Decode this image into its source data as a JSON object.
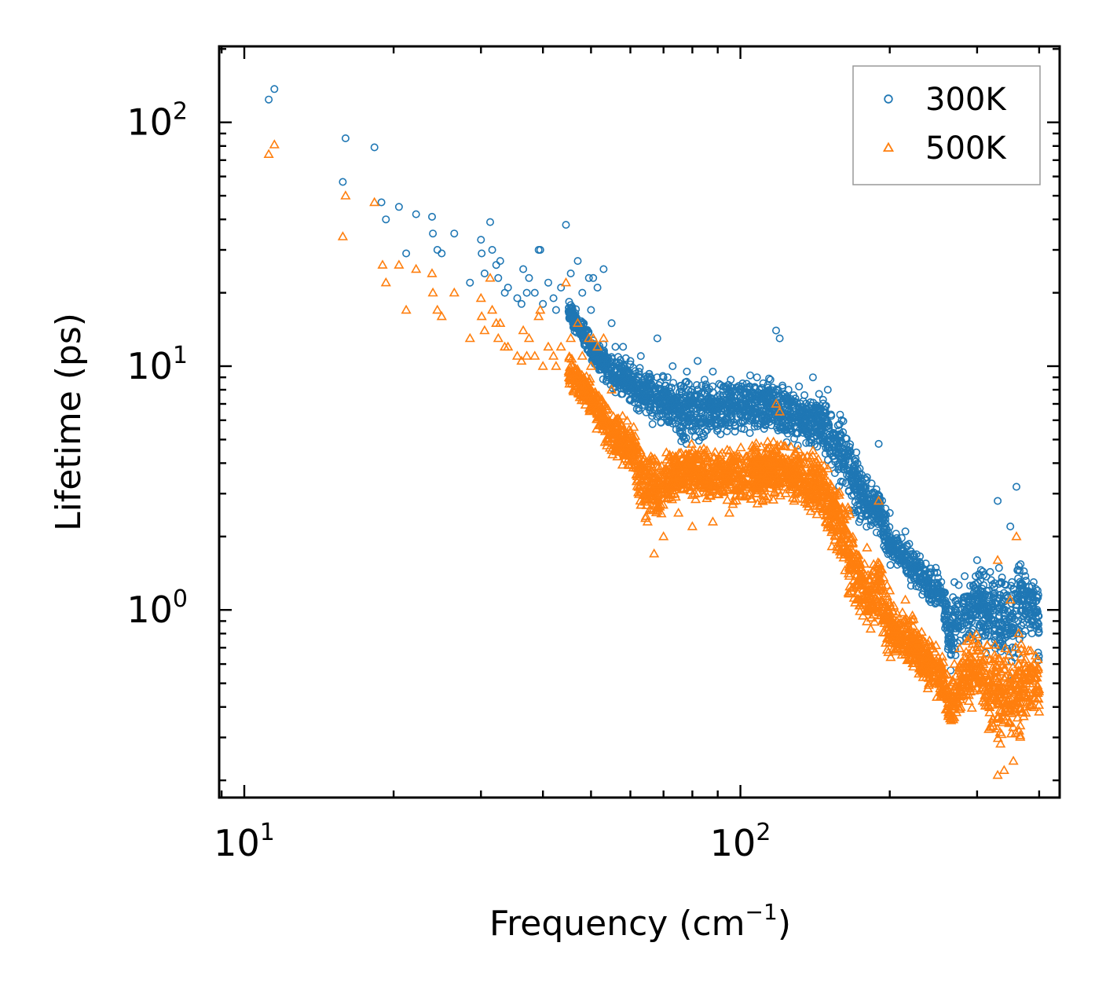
{
  "chart_data": {
    "type": "scatter",
    "xscale": "log",
    "yscale": "log",
    "xlim": [
      8.9,
      440
    ],
    "ylim": [
      0.17,
      205
    ],
    "xlabel": {
      "base": "Frequency (cm",
      "sup": "−1",
      "tail": ")"
    },
    "ylabel": "Lifetime (ps)",
    "xticks": [
      {
        "value": 10,
        "base": "10",
        "exp": "1"
      },
      {
        "value": 100,
        "base": "10",
        "exp": "2"
      }
    ],
    "yticks": [
      {
        "value": 1,
        "base": "10",
        "exp": "0"
      },
      {
        "value": 10,
        "base": "10",
        "exp": "1"
      },
      {
        "value": 100,
        "base": "10",
        "exp": "2"
      }
    ],
    "legend": {
      "position": "upper right"
    },
    "series": [
      {
        "name": "300K",
        "marker": "circle",
        "color": "#1f77b4",
        "points": [
          [
            11.2,
            124
          ],
          [
            11.5,
            137
          ],
          [
            15.8,
            57
          ],
          [
            16.0,
            86
          ],
          [
            18.3,
            79
          ],
          [
            18.9,
            47
          ],
          [
            19.3,
            40
          ],
          [
            20.5,
            45
          ],
          [
            21.2,
            29
          ],
          [
            22.2,
            42
          ],
          [
            23.9,
            41
          ],
          [
            24.0,
            35
          ],
          [
            24.5,
            30
          ],
          [
            25.0,
            29
          ],
          [
            26.5,
            35
          ],
          [
            28.5,
            22
          ],
          [
            30.0,
            33
          ],
          [
            30.1,
            29
          ],
          [
            30.5,
            24
          ],
          [
            31.3,
            39
          ],
          [
            31.6,
            30
          ],
          [
            32.2,
            26
          ],
          [
            32.5,
            23
          ],
          [
            32.8,
            27
          ],
          [
            33.5,
            20
          ],
          [
            34.0,
            21
          ],
          [
            35.5,
            19
          ],
          [
            36.2,
            18
          ],
          [
            36.5,
            25
          ],
          [
            37.1,
            20
          ],
          [
            37.5,
            23
          ],
          [
            38.5,
            20
          ],
          [
            39.2,
            30
          ],
          [
            39.5,
            30
          ],
          [
            40.0,
            18
          ],
          [
            41.0,
            22
          ],
          [
            42.0,
            19
          ],
          [
            42.5,
            17
          ],
          [
            43.5,
            21
          ],
          [
            44.5,
            38
          ],
          [
            45.5,
            24
          ],
          [
            46.5,
            16
          ],
          [
            47.0,
            27
          ],
          [
            48.0,
            20
          ],
          [
            49.5,
            23
          ],
          [
            50.0,
            17
          ],
          [
            50.5,
            23
          ],
          [
            51.5,
            21
          ],
          [
            53.0,
            25
          ],
          [
            55.0,
            15
          ],
          [
            56.0,
            12
          ],
          [
            58.0,
            12
          ],
          [
            60.0,
            10.5
          ],
          [
            63.0,
            11
          ],
          [
            65.0,
            9
          ],
          [
            68.0,
            13
          ],
          [
            70.0,
            9
          ],
          [
            73.0,
            10
          ],
          [
            78.0,
            9.5
          ],
          [
            82.0,
            10.5
          ],
          [
            88.0,
            9.5
          ],
          [
            95.0,
            8
          ],
          [
            108.0,
            9
          ],
          [
            118.0,
            14
          ],
          [
            120.0,
            13
          ],
          [
            125.0,
            8
          ],
          [
            140.0,
            9
          ],
          [
            150.0,
            8
          ],
          [
            160.0,
            6
          ],
          [
            180.0,
            3.5
          ],
          [
            190.0,
            4.8
          ],
          [
            200.0,
            2.5
          ],
          [
            215.0,
            2.1
          ],
          [
            225.0,
            1.5
          ],
          [
            240.0,
            1.1
          ],
          [
            270.0,
            1.3
          ],
          [
            300.0,
            1.6
          ],
          [
            330.0,
            2.8
          ],
          [
            350.0,
            2.2
          ],
          [
            360.0,
            3.2
          ],
          [
            390.0,
            1.3
          ]
        ],
        "band": [
          [
            45,
            15,
            20
          ],
          [
            50,
            10,
            14
          ],
          [
            55,
            7.5,
            12
          ],
          [
            60,
            6.5,
            11
          ],
          [
            68,
            5.5,
            10
          ],
          [
            75,
            4.5,
            9.5
          ],
          [
            85,
            4.8,
            9.5
          ],
          [
            95,
            5.0,
            9.5
          ],
          [
            105,
            5.0,
            9.8
          ],
          [
            115,
            5.2,
            9.5
          ],
          [
            125,
            4.6,
            8.6
          ],
          [
            135,
            4.4,
            8.6
          ],
          [
            145,
            4.2,
            8.2
          ],
          [
            155,
            3.4,
            7.2
          ],
          [
            165,
            2.4,
            6.2
          ],
          [
            172,
            2.2,
            4.6
          ],
          [
            180,
            2.0,
            3.6
          ],
          [
            190,
            2.0,
            3.3
          ],
          [
            200,
            1.5,
            2.4
          ],
          [
            210,
            1.4,
            2.1
          ],
          [
            220,
            1.2,
            1.9
          ],
          [
            230,
            1.1,
            1.8
          ],
          [
            240,
            1.0,
            1.6
          ],
          [
            255,
            0.9,
            1.5
          ],
          [
            265,
            0.5,
            1.2
          ],
          [
            280,
            0.6,
            1.5
          ],
          [
            300,
            0.7,
            1.7
          ],
          [
            320,
            0.6,
            1.6
          ],
          [
            335,
            0.5,
            1.8
          ],
          [
            350,
            0.5,
            1.6
          ],
          [
            365,
            0.6,
            1.8
          ],
          [
            380,
            0.8,
            1.5
          ],
          [
            395,
            0.7,
            1.4
          ],
          [
            400,
            0.5,
            1.3
          ]
        ]
      },
      {
        "name": "500K",
        "marker": "triangle",
        "color": "#ff7f0e",
        "points": [
          [
            11.2,
            74
          ],
          [
            11.5,
            81
          ],
          [
            15.8,
            34
          ],
          [
            16.0,
            50
          ],
          [
            18.3,
            47
          ],
          [
            19.0,
            26
          ],
          [
            19.3,
            22
          ],
          [
            20.5,
            26
          ],
          [
            21.2,
            17
          ],
          [
            22.2,
            25
          ],
          [
            23.9,
            24
          ],
          [
            24.0,
            20
          ],
          [
            24.5,
            17
          ],
          [
            25.0,
            16
          ],
          [
            26.5,
            20
          ],
          [
            28.5,
            13
          ],
          [
            30.0,
            19
          ],
          [
            30.1,
            16
          ],
          [
            30.5,
            14
          ],
          [
            31.3,
            23
          ],
          [
            31.6,
            17
          ],
          [
            32.2,
            15
          ],
          [
            32.5,
            13
          ],
          [
            32.8,
            15
          ],
          [
            33.5,
            12
          ],
          [
            34.0,
            12
          ],
          [
            35.5,
            11
          ],
          [
            36.2,
            10.5
          ],
          [
            36.5,
            14
          ],
          [
            37.1,
            11
          ],
          [
            37.5,
            13
          ],
          [
            38.5,
            11
          ],
          [
            39.2,
            16
          ],
          [
            39.5,
            17
          ],
          [
            40.0,
            10
          ],
          [
            41.0,
            12
          ],
          [
            42.0,
            11
          ],
          [
            42.5,
            10
          ],
          [
            43.5,
            12
          ],
          [
            44.5,
            22
          ],
          [
            45.5,
            13
          ],
          [
            46.5,
            9
          ],
          [
            47.0,
            15
          ],
          [
            48.0,
            11
          ],
          [
            49.5,
            13
          ],
          [
            50.0,
            10
          ],
          [
            50.5,
            13
          ],
          [
            51.5,
            12
          ],
          [
            53.0,
            13
          ],
          [
            55.0,
            8
          ],
          [
            56.0,
            6
          ],
          [
            58.0,
            5
          ],
          [
            60.0,
            4.5
          ],
          [
            63.0,
            4
          ],
          [
            65.0,
            2.3
          ],
          [
            67.0,
            1.7
          ],
          [
            70.0,
            2.0
          ],
          [
            75.0,
            2.5
          ],
          [
            80.0,
            2.2
          ],
          [
            88.0,
            2.3
          ],
          [
            95.0,
            2.5
          ],
          [
            108.0,
            3.0
          ],
          [
            118.0,
            7.0
          ],
          [
            120.0,
            6.5
          ],
          [
            125.0,
            4.0
          ],
          [
            140.0,
            4.5
          ],
          [
            150.0,
            3.8
          ],
          [
            160.0,
            2.6
          ],
          [
            180.0,
            1.8
          ],
          [
            190.0,
            2.8
          ],
          [
            200.0,
            1.2
          ],
          [
            215.0,
            1.1
          ],
          [
            225.0,
            0.8
          ],
          [
            240.0,
            0.5
          ],
          [
            270.0,
            0.6
          ],
          [
            300.0,
            0.7
          ],
          [
            330.0,
            1.6
          ],
          [
            350.0,
            1.1
          ],
          [
            360.0,
            2.0
          ],
          [
            390.0,
            0.6
          ],
          [
            330.0,
            0.21
          ],
          [
            340.0,
            0.22
          ],
          [
            355.0,
            0.24
          ]
        ],
        "band": [
          [
            45,
            8,
            12
          ],
          [
            50,
            6,
            9
          ],
          [
            55,
            4,
            7
          ],
          [
            60,
            3.5,
            6.5
          ],
          [
            63,
            2.3,
            5.5
          ],
          [
            67,
            2.0,
            5.0
          ],
          [
            72,
            2.4,
            5.0
          ],
          [
            78,
            2.8,
            5.2
          ],
          [
            85,
            2.6,
            5.2
          ],
          [
            95,
            2.5,
            5.0
          ],
          [
            105,
            2.5,
            5.2
          ],
          [
            115,
            2.7,
            5.4
          ],
          [
            125,
            2.6,
            5.2
          ],
          [
            135,
            2.4,
            4.8
          ],
          [
            145,
            2.1,
            4.6
          ],
          [
            155,
            1.6,
            3.8
          ],
          [
            165,
            1.0,
            3.0
          ],
          [
            172,
            0.9,
            2.0
          ],
          [
            180,
            0.8,
            1.6
          ],
          [
            190,
            0.8,
            1.8
          ],
          [
            200,
            0.6,
            1.2
          ],
          [
            210,
            0.55,
            1.1
          ],
          [
            220,
            0.55,
            1.0
          ],
          [
            230,
            0.5,
            0.9
          ],
          [
            240,
            0.45,
            0.8
          ],
          [
            255,
            0.4,
            0.7
          ],
          [
            265,
            0.3,
            0.5
          ],
          [
            280,
            0.35,
            0.8
          ],
          [
            300,
            0.4,
            0.9
          ],
          [
            320,
            0.28,
            0.8
          ],
          [
            335,
            0.22,
            0.9
          ],
          [
            350,
            0.25,
            0.85
          ],
          [
            365,
            0.25,
            0.9
          ],
          [
            380,
            0.35,
            0.75
          ],
          [
            395,
            0.35,
            0.75
          ],
          [
            400,
            0.35,
            0.7
          ]
        ]
      }
    ]
  }
}
